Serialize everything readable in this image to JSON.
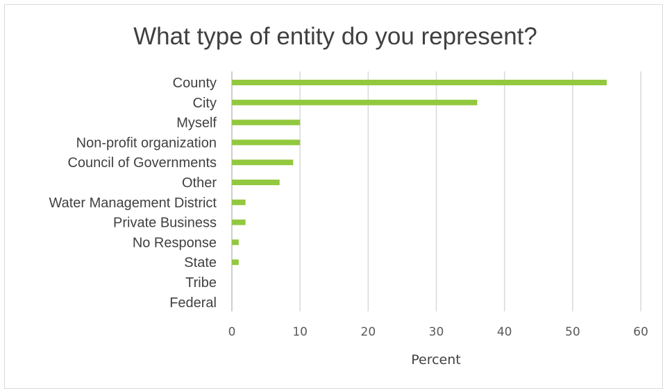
{
  "chart_data": {
    "type": "bar",
    "orientation": "horizontal",
    "title": "What type of entity do you represent?",
    "xlabel": "Percent",
    "ylabel": "",
    "xlim": [
      0,
      60
    ],
    "xticks": [
      0,
      10,
      20,
      30,
      40,
      50,
      60
    ],
    "grid": true,
    "legend": "none",
    "bar_color": "#92c83e",
    "categories": [
      "County",
      "City",
      "Myself",
      "Non-profit organization",
      "Council of Governments",
      "Other",
      "Water Management District",
      "Private Business",
      "No Response",
      "State",
      "Tribe",
      "Federal"
    ],
    "values": [
      55,
      36,
      10,
      10,
      9,
      7,
      2,
      2,
      1,
      1,
      0,
      0
    ]
  }
}
